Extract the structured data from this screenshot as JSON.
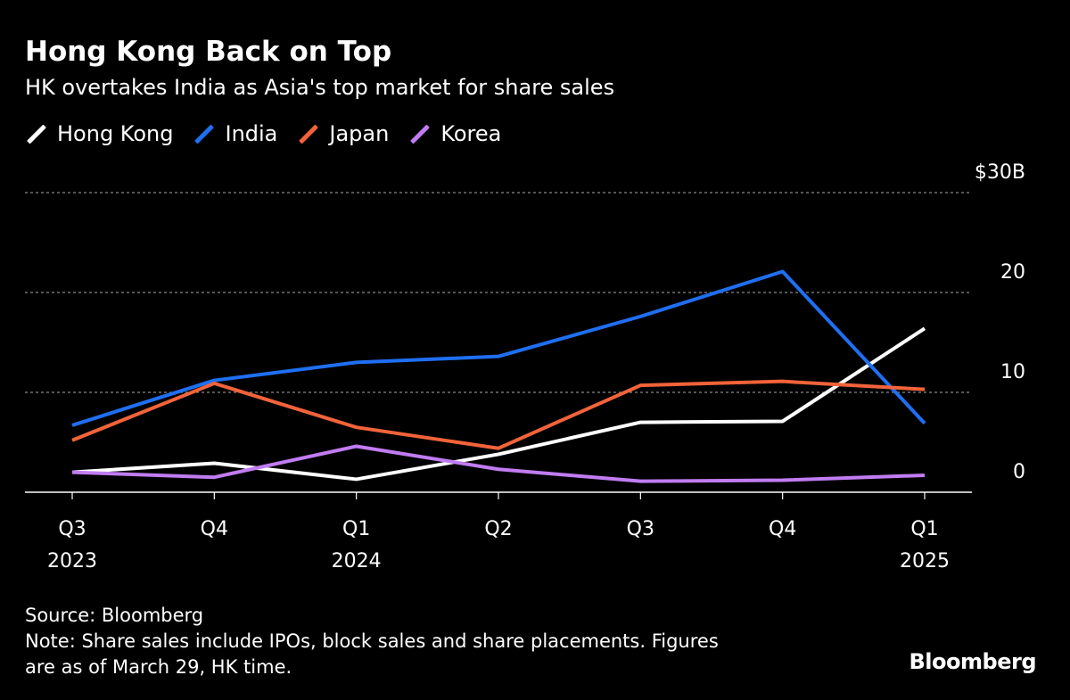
{
  "title": "Hong Kong Back on Top",
  "subtitle": "HK overtakes India as Asia's top market for share sales",
  "source": "Source: Bloomberg",
  "note": "Note: Share sales include IPOs, block sales and share placements. Figures",
  "note2": "are as of March 29, HK time.",
  "logo": "Bloomberg",
  "chart_data": {
    "type": "line",
    "title": "Hong Kong Back on Top",
    "x": [
      "Q3 2023",
      "Q4",
      "Q1 2024",
      "Q2",
      "Q3",
      "Q4",
      "Q1 2025"
    ],
    "x_tick_labels": [
      [
        "Q3",
        "2023"
      ],
      [
        "Q4",
        ""
      ],
      [
        "Q1",
        "2024"
      ],
      [
        "Q2",
        ""
      ],
      [
        "Q3",
        ""
      ],
      [
        "Q4",
        ""
      ],
      [
        "Q1",
        "2025"
      ]
    ],
    "ylim": [
      0,
      30
    ],
    "y_ticks": [
      {
        "v": 0,
        "label": "0"
      },
      {
        "v": 10,
        "label": "10"
      },
      {
        "v": 20,
        "label": "20"
      },
      {
        "v": 30,
        "label": "$30B"
      }
    ],
    "grid": true,
    "legend_position": "top-left",
    "series": [
      {
        "name": "Hong Kong",
        "color": "#ffffff",
        "values": [
          2.0,
          2.9,
          1.3,
          3.8,
          7.0,
          7.1,
          16.4
        ]
      },
      {
        "name": "India",
        "color": "#1f6ff2",
        "values": [
          6.7,
          11.2,
          13.0,
          13.6,
          17.6,
          22.1,
          6.9
        ]
      },
      {
        "name": "Japan",
        "color": "#f2633a",
        "values": [
          5.2,
          10.9,
          6.5,
          4.4,
          10.7,
          11.1,
          10.3
        ]
      },
      {
        "name": "Korea",
        "color": "#c17cf2",
        "values": [
          2.0,
          1.5,
          4.6,
          2.3,
          1.1,
          1.2,
          1.7
        ]
      }
    ]
  }
}
